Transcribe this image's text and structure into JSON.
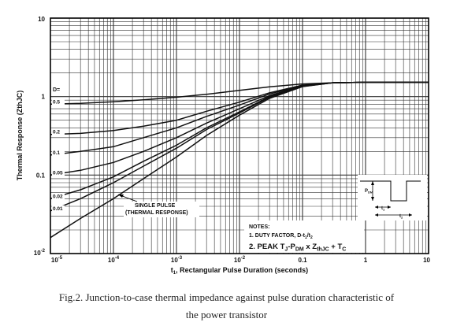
{
  "chart_data": {
    "type": "line",
    "title": "",
    "xlabel_prefix": "t",
    "xlabel_sub": "1",
    "xlabel_rest": ", Rectangular Pulse Duration (seconds)",
    "ylabel": "Thermal Response (ZthJC)",
    "xscale": "log",
    "yscale": "log",
    "xlim": [
      1e-05,
      10
    ],
    "ylim": [
      0.01,
      10
    ],
    "grid": true,
    "x_ticks": [
      {
        "value": 1e-05,
        "base": "10",
        "exp": "-5"
      },
      {
        "value": 0.0001,
        "base": "10",
        "exp": "-4"
      },
      {
        "value": 0.001,
        "base": "10",
        "exp": "-3"
      },
      {
        "value": 0.01,
        "base": "10",
        "exp": "-2"
      },
      {
        "value": 0.1,
        "base": "0.1",
        "exp": ""
      },
      {
        "value": 1,
        "base": "1",
        "exp": ""
      },
      {
        "value": 10,
        "base": "10",
        "exp": ""
      }
    ],
    "y_ticks": [
      {
        "value": 0.01,
        "base": "10",
        "exp": "-2"
      },
      {
        "value": 0.1,
        "base": "0.1",
        "exp": ""
      },
      {
        "value": 1,
        "base": "1",
        "exp": ""
      },
      {
        "value": 10,
        "base": "10",
        "exp": ""
      }
    ],
    "legend_title": "D=",
    "x": [
      1e-05,
      3e-05,
      0.0001,
      0.0003,
      0.001,
      0.003,
      0.01,
      0.03,
      0.1,
      0.3,
      1,
      3,
      10
    ],
    "series": [
      {
        "name": "0.5",
        "values": [
          0.8,
          0.82,
          0.86,
          0.91,
          0.98,
          1.07,
          1.2,
          1.33,
          1.45,
          1.5,
          1.52,
          1.52,
          1.52
        ]
      },
      {
        "name": "0.2",
        "values": [
          0.33,
          0.34,
          0.37,
          0.42,
          0.5,
          0.65,
          0.85,
          1.12,
          1.4,
          1.5,
          1.52,
          1.52,
          1.52
        ]
      },
      {
        "name": "0.1",
        "values": [
          0.18,
          0.2,
          0.23,
          0.3,
          0.4,
          0.56,
          0.78,
          1.08,
          1.38,
          1.5,
          1.52,
          1.52,
          1.52
        ]
      },
      {
        "name": "0.05",
        "values": [
          0.1,
          0.115,
          0.145,
          0.2,
          0.3,
          0.46,
          0.7,
          1.03,
          1.37,
          1.5,
          1.52,
          1.52,
          1.52
        ]
      },
      {
        "name": "0.02",
        "values": [
          0.05,
          0.065,
          0.095,
          0.15,
          0.24,
          0.4,
          0.64,
          1.0,
          1.36,
          1.5,
          1.52,
          1.52,
          1.52
        ]
      },
      {
        "name": "0.01",
        "values": [
          0.035,
          0.05,
          0.08,
          0.13,
          0.22,
          0.38,
          0.62,
          0.98,
          1.35,
          1.5,
          1.52,
          1.52,
          1.52
        ]
      },
      {
        "name": "single",
        "values": [
          0.016,
          0.028,
          0.05,
          0.09,
          0.17,
          0.32,
          0.58,
          0.95,
          1.34,
          1.5,
          1.52,
          1.52,
          1.52
        ]
      }
    ],
    "single_pulse_label_line1": "SINGLE PULSE",
    "single_pulse_label_line2": "(THERMAL RESPONSE)",
    "notes": {
      "title": "NOTES:",
      "line1_prefix": "1. DUTY FACTOR, D-t",
      "line1_sub1": "1",
      "line1_mid": "/t",
      "line1_sub2": "2",
      "line2_a": "2. PEAK T",
      "line2_sub_j": "J",
      "line2_b": "-P",
      "line2_sub_dm": "DM",
      "line2_c": " x Z",
      "line2_sub_th": "thJC",
      "line2_d": " + T",
      "line2_sub_c": "C"
    },
    "inset": {
      "p_label": "P",
      "p_sub": "DM",
      "t1_label": "t",
      "t1_sub": "1",
      "t2_label": "t",
      "t2_sub": "2"
    },
    "colors": {
      "lines": "#111111",
      "grid": "#333333",
      "background": "#ffffff"
    }
  },
  "caption": {
    "line1": "Fig.2. Junction-to-case thermal impedance against pulse duration characteristic of",
    "line2": "the power transistor"
  }
}
